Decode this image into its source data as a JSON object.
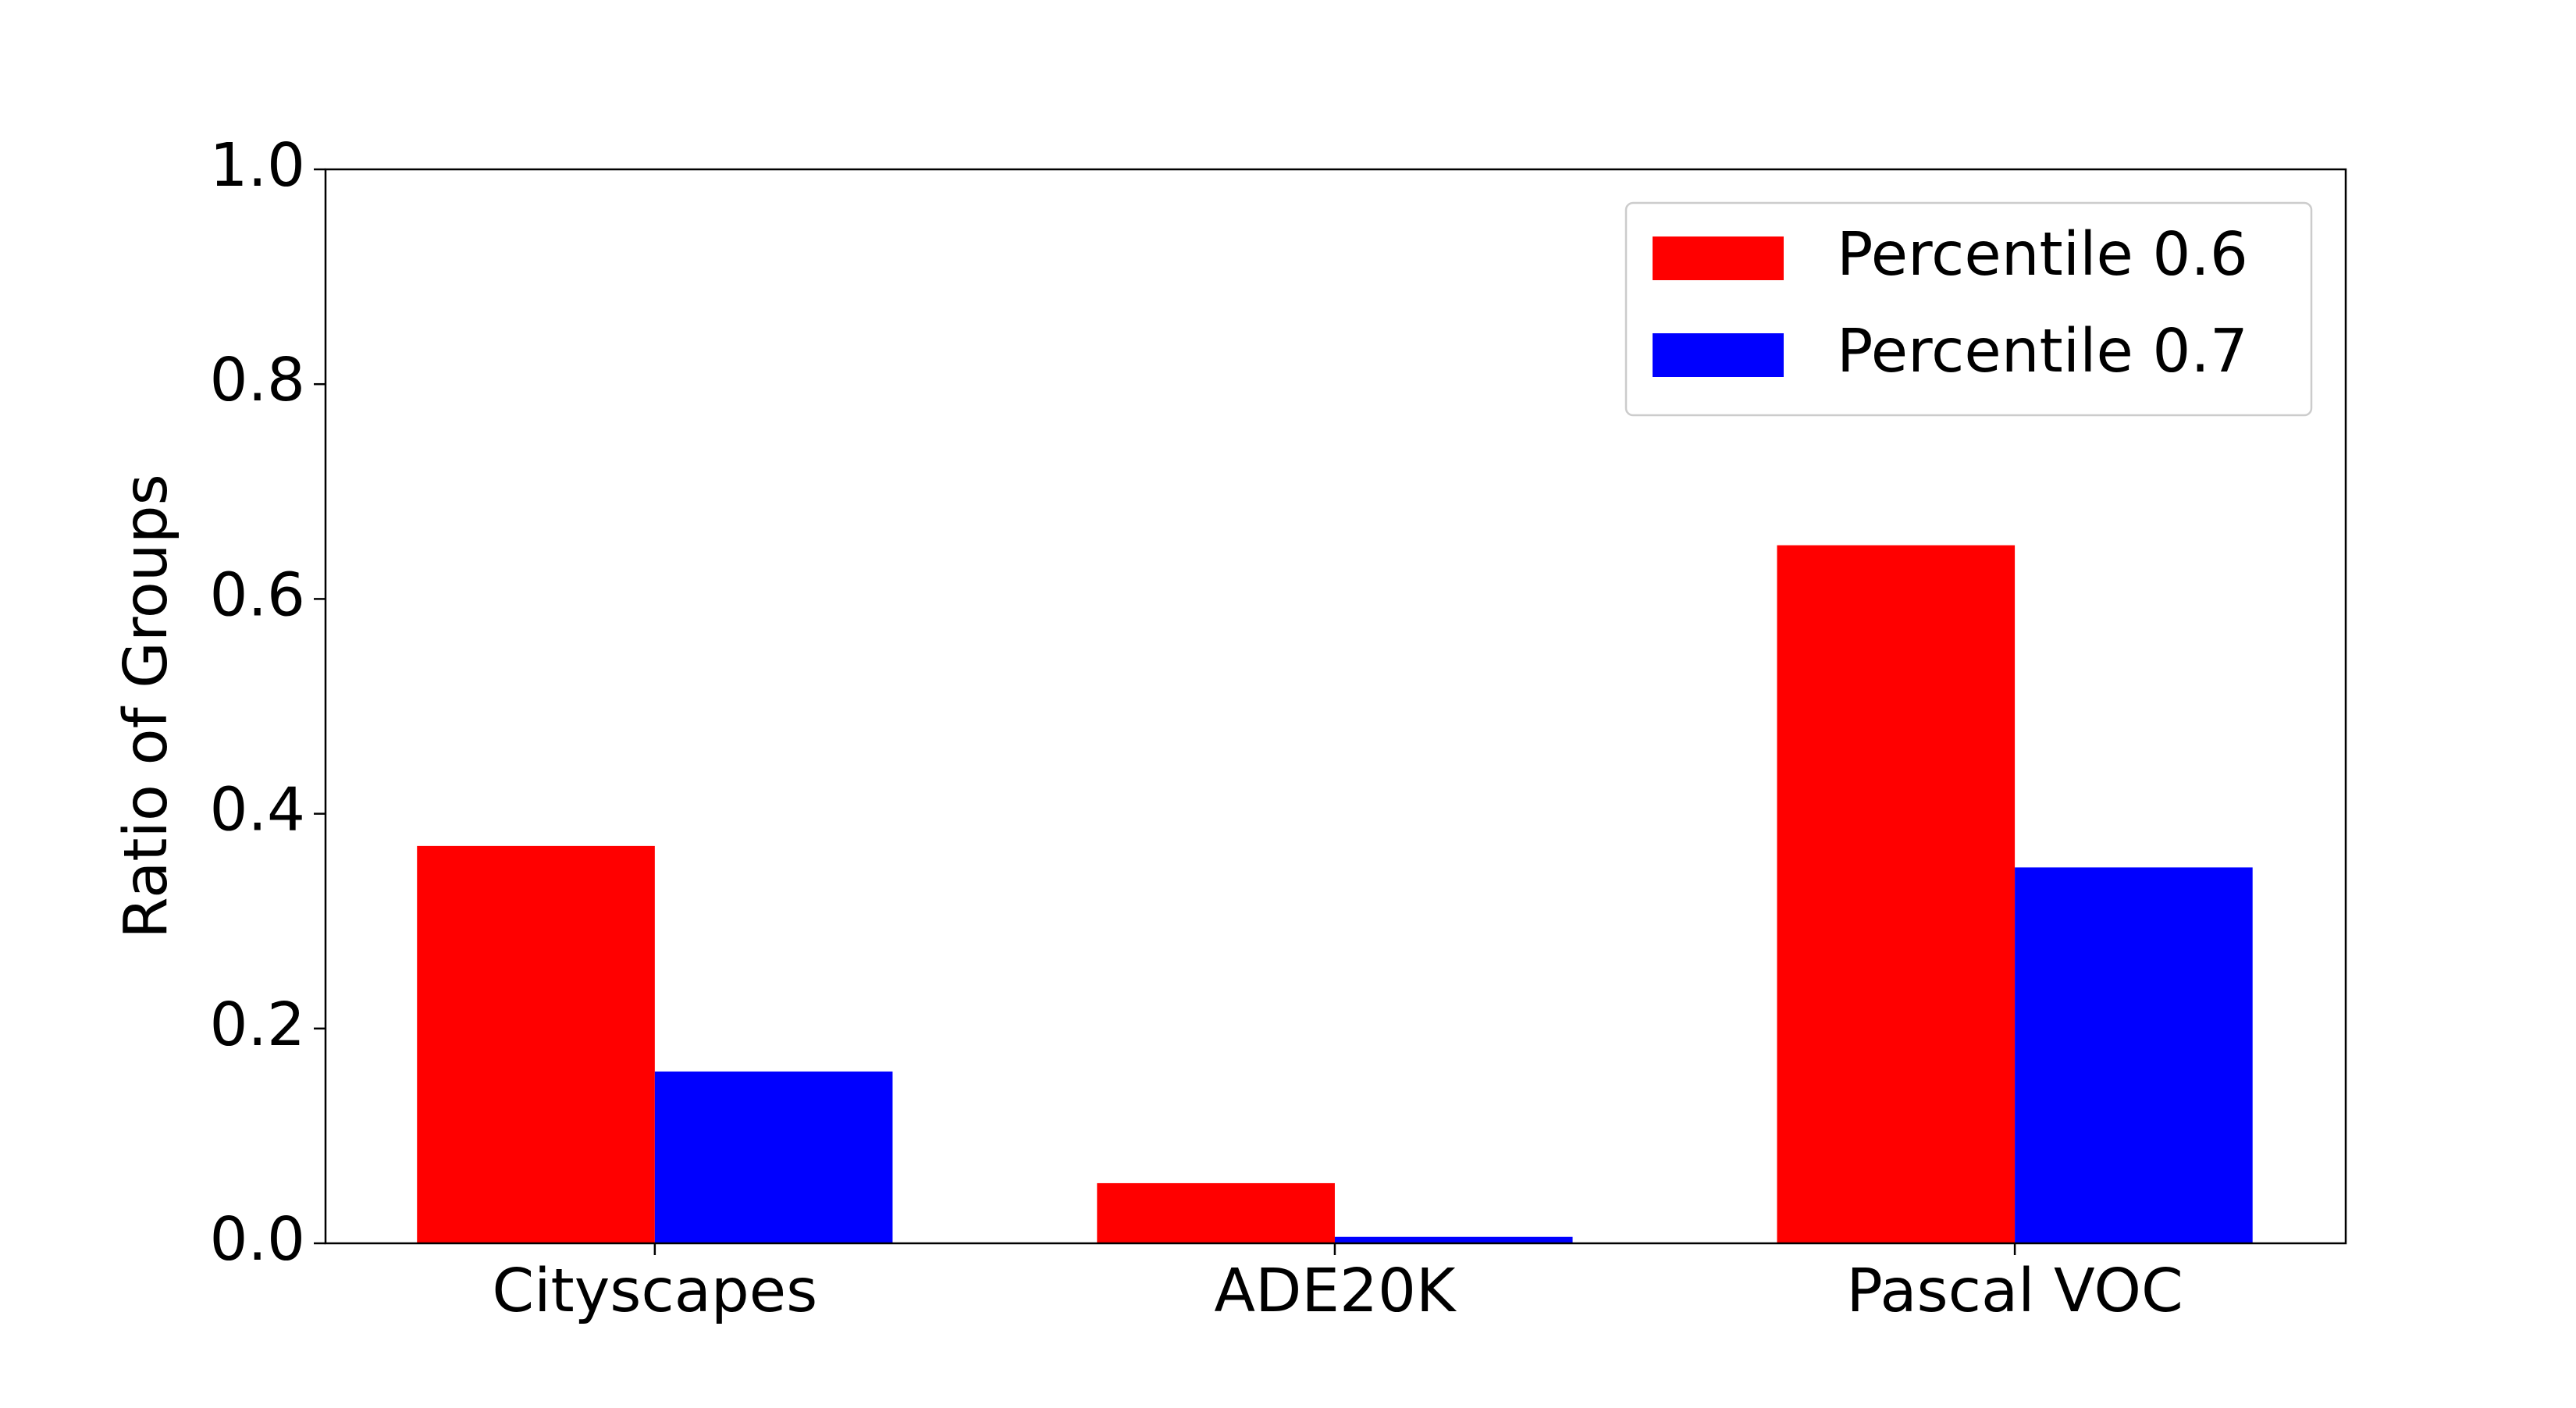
{
  "chart_data": {
    "type": "bar",
    "y_label": "Ratio of Groups",
    "categories": [
      "Cityscapes",
      "ADE20K",
      "Pascal VOC"
    ],
    "series": [
      {
        "name": "Percentile 0.6",
        "color": "#ff0000",
        "values": [
          0.37,
          0.056,
          0.65
        ]
      },
      {
        "name": "Percentile 0.7",
        "color": "#0000ff",
        "values": [
          0.16,
          0.006,
          0.35
        ]
      }
    ],
    "ylim": [
      0,
      1
    ],
    "yticks": [
      {
        "value": 0,
        "label": "0.0"
      },
      0.2,
      0.4,
      0.6,
      0.8,
      {
        "value": 1,
        "label": "1.0"
      }
    ],
    "legend": "upper right",
    "grid": false
  }
}
